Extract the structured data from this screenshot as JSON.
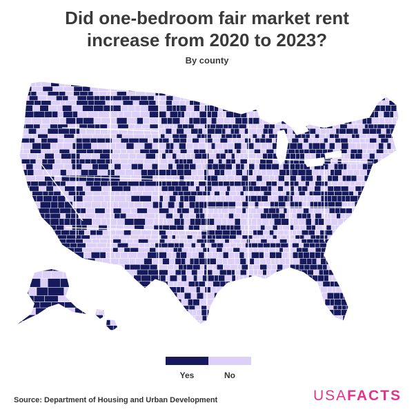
{
  "header": {
    "title_line1": "Did one-bedroom fair market rent",
    "title_line2": "increase from 2020 to 2023?",
    "subtitle": "By county"
  },
  "legend": {
    "items": [
      {
        "label": "Yes",
        "color": "#161a5c"
      },
      {
        "label": "No",
        "color": "#dcd0f8"
      }
    ]
  },
  "colors": {
    "yes": "#161a5c",
    "no": "#dcd0f8",
    "background": "#ffffff",
    "accent": "#e0358a"
  },
  "footer": {
    "source": "Source: Department of Housing and Urban Development",
    "logo_part1": "USA",
    "logo_part2": "FACTS"
  }
}
